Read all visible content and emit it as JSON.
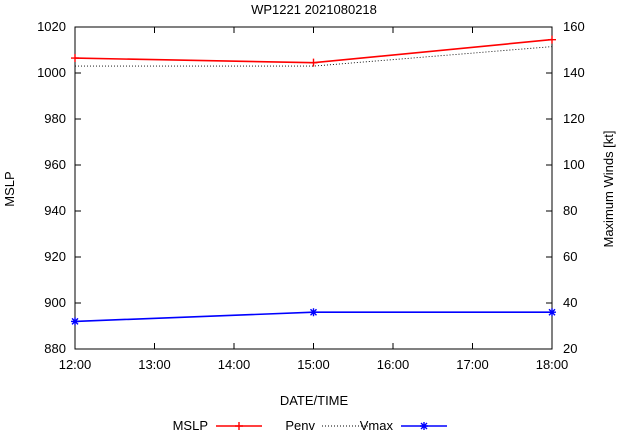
{
  "chart_data": {
    "type": "line",
    "title": "WP1221 2021080218",
    "xlabel": "DATE/TIME",
    "ylabel": "MSLP",
    "y2label": "Maximum Winds [kt]",
    "categories": [
      "12:00",
      "13:00",
      "14:00",
      "15:00",
      "16:00",
      "17:00",
      "18:00"
    ],
    "x_hours": [
      12,
      13,
      14,
      15,
      16,
      17,
      18
    ],
    "xlim": [
      12,
      18
    ],
    "ylim": [
      880,
      1020
    ],
    "y2lim": [
      20,
      160
    ],
    "yticks": [
      880,
      900,
      920,
      940,
      960,
      980,
      1000,
      1020
    ],
    "y2ticks": [
      20,
      40,
      60,
      80,
      100,
      120,
      140,
      160
    ],
    "legend_position": "bottom",
    "legend": [
      "MSLP",
      "Penv",
      "Vmax"
    ],
    "series": [
      {
        "name": "MSLP",
        "axis": "left",
        "color": "#ff0000",
        "style": "solid-plus",
        "x": [
          12,
          15,
          18
        ],
        "values": [
          1006.5,
          1004.5,
          1014.5
        ]
      },
      {
        "name": "Penv",
        "axis": "left",
        "color": "#000000",
        "style": "dotted",
        "x": [
          12,
          15,
          18
        ],
        "values": [
          1003,
          1003,
          1011.5
        ]
      },
      {
        "name": "Vmax",
        "axis": "right",
        "color": "#0000ff",
        "style": "solid-star",
        "x": [
          12,
          15,
          18
        ],
        "values": [
          32,
          36,
          36
        ]
      }
    ]
  }
}
